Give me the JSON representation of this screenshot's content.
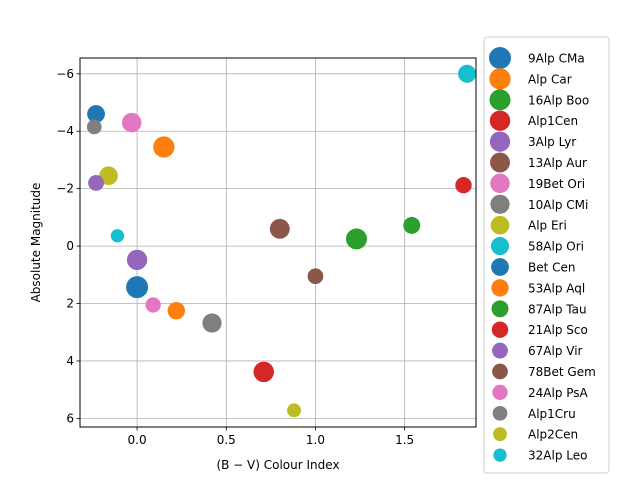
{
  "chart_data": {
    "type": "scatter",
    "title": "",
    "xlabel": "(B − V) Colour Index",
    "ylabel": "Absolute Magnitude",
    "xlim": [
      -0.32,
      1.9
    ],
    "ylim": [
      6.3,
      -6.55
    ],
    "y_inverted": true,
    "grid": true,
    "legend_position": "outside-right",
    "xticks": [
      0.0,
      0.5,
      1.0,
      1.5
    ],
    "xtick_labels": [
      "0.0",
      "0.5",
      "1.0",
      "1.5"
    ],
    "yticks": [
      -6,
      -4,
      -2,
      0,
      2,
      4,
      6
    ],
    "ytick_labels": [
      "−6",
      "−4",
      "−2",
      "0",
      "2",
      "4",
      "6"
    ],
    "series": [
      {
        "name": "9Alp CMa",
        "color": "#1f77b4",
        "size": 1.0,
        "x": 0.0,
        "y": 1.43
      },
      {
        "name": "Alp Car",
        "color": "#ff7f0e",
        "size": 0.95,
        "x": 0.15,
        "y": -3.45
      },
      {
        "name": "16Alp Boo",
        "color": "#2ca02c",
        "size": 0.93,
        "x": 1.23,
        "y": -0.25
      },
      {
        "name": "Alp1Cen",
        "color": "#d62728",
        "size": 0.89,
        "x": 0.71,
        "y": 4.38
      },
      {
        "name": "3Alp Lyr",
        "color": "#9467bd",
        "size": 0.88,
        "x": 0.0,
        "y": 0.48
      },
      {
        "name": "13Alp Aur",
        "color": "#8c564b",
        "size": 0.85,
        "x": 0.8,
        "y": -0.6
      },
      {
        "name": "19Bet Ori",
        "color": "#e377c2",
        "size": 0.82,
        "x": -0.03,
        "y": -4.3
      },
      {
        "name": "10Alp CMi",
        "color": "#7f7f7f",
        "size": 0.8,
        "x": 0.42,
        "y": 2.68
      },
      {
        "name": "Alp Eri",
        "color": "#bcbd22",
        "size": 0.76,
        "x": -0.16,
        "y": -2.45
      },
      {
        "name": "58Alp Ori",
        "color": "#17becf",
        "size": 0.72,
        "x": 1.85,
        "y": -6.0
      },
      {
        "name": "Bet Cen",
        "color": "#1f77b4",
        "size": 0.7,
        "x": -0.23,
        "y": -4.6
      },
      {
        "name": "53Alp Aql",
        "color": "#ff7f0e",
        "size": 0.67,
        "x": 0.22,
        "y": 2.25
      },
      {
        "name": "87Alp Tau",
        "color": "#2ca02c",
        "size": 0.64,
        "x": 1.54,
        "y": -0.72
      },
      {
        "name": "21Alp Sco",
        "color": "#d62728",
        "size": 0.6,
        "x": 1.83,
        "y": -2.12
      },
      {
        "name": "67Alp Vir",
        "color": "#9467bd",
        "size": 0.56,
        "x": -0.23,
        "y": -2.2
      },
      {
        "name": "78Bet Gem",
        "color": "#8c564b",
        "size": 0.55,
        "x": 1.0,
        "y": 1.05
      },
      {
        "name": "24Alp PsA",
        "color": "#e377c2",
        "size": 0.52,
        "x": 0.09,
        "y": 2.05
      },
      {
        "name": "Alp1Cru",
        "color": "#7f7f7f",
        "size": 0.48,
        "x": -0.24,
        "y": -4.15
      },
      {
        "name": "Alp2Cen",
        "color": "#bcbd22",
        "size": 0.42,
        "x": 0.88,
        "y": 5.72
      },
      {
        "name": "32Alp Leo",
        "color": "#17becf",
        "size": 0.38,
        "x": -0.11,
        "y": -0.36
      }
    ]
  }
}
